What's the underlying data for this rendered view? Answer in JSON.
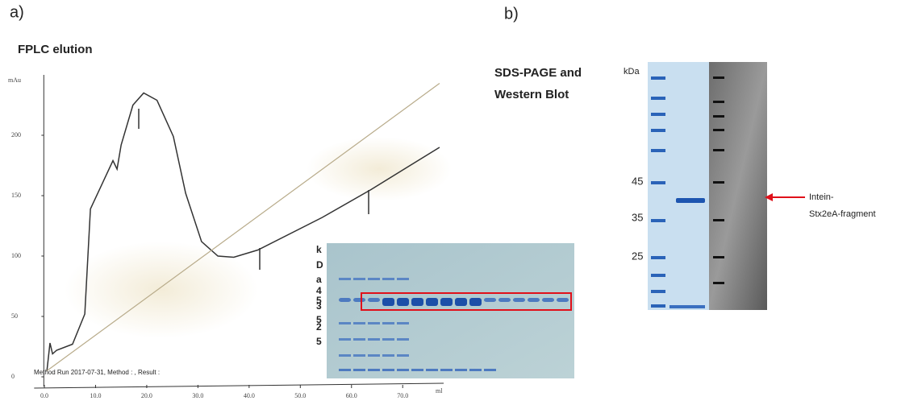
{
  "panel_a": {
    "label": "a)",
    "run_info": "Method Run 2017-07-31, Method : , Result :",
    "inset_gel_labels": [
      "k",
      "D",
      "a",
      "4",
      "5",
      "3",
      "5",
      "2",
      "5"
    ]
  },
  "chart_data": {
    "type": "line",
    "title": "FPLC elution",
    "ylabel": "mAu",
    "xlabel": "ml",
    "xlim": [
      -2,
      78
    ],
    "ylim": [
      0,
      250
    ],
    "xticks": [
      {
        "value": 0,
        "label": "0.0"
      },
      {
        "value": 10,
        "label": "10.0"
      },
      {
        "value": 20,
        "label": "20.0"
      },
      {
        "value": 30,
        "label": "30.0"
      },
      {
        "value": 40,
        "label": "40.0"
      },
      {
        "value": 50,
        "label": "50.0"
      },
      {
        "value": 60,
        "label": "60.0"
      },
      {
        "value": 70,
        "label": "70.0"
      }
    ],
    "yticks": [
      0,
      50,
      100,
      150,
      200
    ],
    "series": [
      {
        "color": "#333333",
        "x": [
          0.5,
          1.1,
          1.6,
          2.4,
          5.5,
          7.9,
          9,
          13.4,
          14.2,
          15,
          17.3,
          19.4,
          22,
          25.2,
          27.6,
          30.7,
          33.9,
          37,
          41.7,
          54.3,
          63.8,
          77.2
        ],
        "values": [
          5,
          28,
          19,
          22,
          27,
          52,
          139,
          179,
          172,
          192,
          225,
          235,
          229,
          199,
          152,
          112,
          100,
          99,
          105,
          132,
          155,
          190
        ]
      },
      {
        "color": "#b8ab8a",
        "x": [
          0.5,
          77.2
        ],
        "values": [
          5,
          243
        ]
      }
    ]
  },
  "panel_b": {
    "label": "b)",
    "title_lines": [
      "SDS-PAGE and",
      "Western Blot"
    ],
    "unit": "kDa",
    "markers": [
      "45",
      "35",
      "25"
    ],
    "annotation_lines": [
      "Intein-",
      "Stx2eA-fragment"
    ]
  }
}
